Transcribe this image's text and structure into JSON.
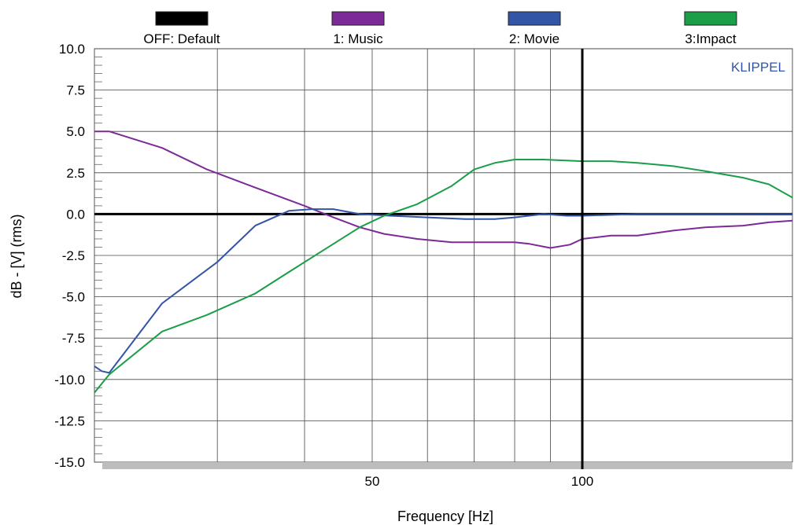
{
  "chart_data": {
    "type": "line",
    "xlabel": "Frequency [Hz]",
    "ylabel": "dB - [V]  (rms)",
    "watermark": "KLIPPEL",
    "x_scale": "log",
    "xlim": [
      20,
      200
    ],
    "ylim": [
      -15,
      10
    ],
    "x_tick_labels": [
      {
        "value": 50,
        "label": "50"
      },
      {
        "value": 100,
        "label": "100"
      }
    ],
    "y_ticks": [
      10.0,
      7.5,
      5.0,
      2.5,
      0.0,
      -2.5,
      -5.0,
      -7.5,
      -10.0,
      -12.5,
      -15.0
    ],
    "y_tick_labels": [
      "10.0",
      "7.5",
      "5.0",
      "2.5",
      "0.0",
      "-2.5",
      "-5.0",
      "-7.5",
      "-10.0",
      "-12.5",
      "-15.0"
    ],
    "x_gridlines": [
      30,
      40,
      50,
      60,
      70,
      80,
      90,
      100
    ],
    "cursor_x": 100,
    "grid": true,
    "legend_position": "top",
    "series": [
      {
        "name": "OFF: Default",
        "color": "#000000",
        "x": [
          20,
          200
        ],
        "y": [
          0.0,
          0.0
        ]
      },
      {
        "name": "1: Music",
        "color": "#7b2a96",
        "x": [
          20,
          21,
          25,
          29,
          34,
          40,
          44,
          48,
          52,
          58,
          65,
          72,
          78,
          80,
          84,
          90,
          96,
          100,
          110,
          120,
          135,
          150,
          170,
          185,
          200
        ],
        "y": [
          5.0,
          5.0,
          4.0,
          2.7,
          1.6,
          0.5,
          -0.2,
          -0.8,
          -1.2,
          -1.5,
          -1.7,
          -1.7,
          -1.7,
          -1.7,
          -1.8,
          -2.05,
          -1.85,
          -1.5,
          -1.3,
          -1.3,
          -1.0,
          -0.8,
          -0.7,
          -0.5,
          -0.4
        ]
      },
      {
        "name": "2: Movie",
        "color": "#3355a5",
        "x": [
          20,
          20.5,
          21,
          25,
          30,
          34,
          38,
          41,
          44,
          48,
          53,
          60,
          68,
          75,
          80,
          88,
          95,
          100,
          120,
          150,
          200
        ],
        "y": [
          -9.2,
          -9.5,
          -9.6,
          -5.4,
          -2.9,
          -0.7,
          0.2,
          0.3,
          0.3,
          0.0,
          -0.1,
          -0.2,
          -0.3,
          -0.3,
          -0.2,
          0.0,
          -0.1,
          -0.1,
          0.0,
          0.0,
          0.0
        ]
      },
      {
        "name": "3:Impact",
        "color": "#1a9e47",
        "x": [
          20,
          21,
          25,
          29,
          34,
          38,
          44,
          48,
          52,
          58,
          65,
          70,
          75,
          80,
          88,
          100,
          110,
          120,
          135,
          150,
          170,
          185,
          200
        ],
        "y": [
          -10.8,
          -9.7,
          -7.1,
          -6.1,
          -4.8,
          -3.5,
          -1.8,
          -0.8,
          -0.1,
          0.6,
          1.7,
          2.7,
          3.1,
          3.3,
          3.3,
          3.2,
          3.2,
          3.1,
          2.9,
          2.6,
          2.2,
          1.8,
          1.0
        ]
      }
    ]
  }
}
